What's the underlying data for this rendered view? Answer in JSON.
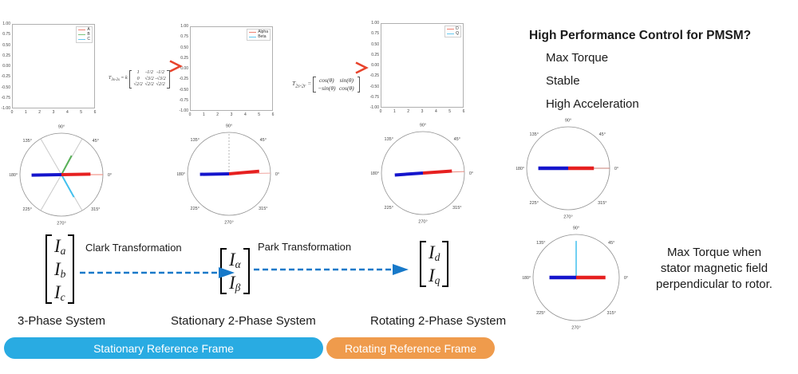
{
  "colors": {
    "pill_blue": "#29abe2",
    "pill_orange": "#ef9b4c",
    "bottom_arrow_blue": "#1779c9",
    "top_arrow_start": "#29abe2",
    "top_arrow_end": "#e8432c",
    "vector_red": "#e62020",
    "vector_blue": "#1515cc",
    "vector_green": "#58b158",
    "vector_cyan": "#41c0ee"
  },
  "chart_data": {
    "plots": [
      {
        "type": "line",
        "legend": [
          {
            "label": "A",
            "color": "#ef8173"
          },
          {
            "label": "B",
            "color": "#7cc47c"
          },
          {
            "label": "C",
            "color": "#64c8f0"
          }
        ],
        "y_ticks": [
          "1.00",
          "0.75",
          "0.50",
          "0.25",
          "0.00",
          "-0.25",
          "-0.50",
          "-0.75",
          "-1.00"
        ],
        "x_ticks": [
          "0",
          "1",
          "2",
          "3",
          "4",
          "5",
          "6"
        ],
        "ylim": [
          -1,
          1
        ],
        "xlim": [
          0,
          6
        ],
        "series": [
          {
            "name": "A",
            "values": []
          },
          {
            "name": "B",
            "values": []
          },
          {
            "name": "C",
            "values": []
          }
        ]
      },
      {
        "type": "line",
        "legend": [
          {
            "label": "Alpha",
            "color": "#ef8173"
          },
          {
            "label": "Beta",
            "color": "#64c8f0"
          }
        ],
        "y_ticks": [
          "1.00",
          "0.75",
          "0.50",
          "0.25",
          "0.00",
          "-0.25",
          "-0.50",
          "-0.75",
          "-1.00"
        ],
        "x_ticks": [
          "0",
          "1",
          "2",
          "3",
          "4",
          "5",
          "6"
        ],
        "ylim": [
          -1,
          1
        ],
        "xlim": [
          0,
          6
        ],
        "series": [
          {
            "name": "Alpha",
            "values": []
          },
          {
            "name": "Beta",
            "values": []
          }
        ]
      },
      {
        "type": "line",
        "legend": [
          {
            "label": "D",
            "color": "#ef8173"
          },
          {
            "label": "Q",
            "color": "#64c8f0"
          }
        ],
        "y_ticks": [
          "1.00",
          "0.75",
          "0.50",
          "0.25",
          "0.00",
          "-0.25",
          "-0.50",
          "-0.75",
          "-1.00"
        ],
        "x_ticks": [
          "0",
          "1",
          "2",
          "3",
          "4",
          "5",
          "6"
        ],
        "ylim": [
          -1,
          1
        ],
        "xlim": [
          0,
          6
        ],
        "series": [
          {
            "name": "D",
            "values": []
          },
          {
            "name": "Q",
            "values": []
          }
        ]
      }
    ],
    "polars": [
      {
        "name": "three-phase-vectors",
        "r": 52,
        "angle_labels": [
          "0°",
          "45°",
          "90°",
          "135°",
          "180°",
          "225°",
          "270°",
          "315°"
        ],
        "vectors": [
          {
            "a": 60,
            "len": 1,
            "w": 1,
            "color": "#c9c9c9",
            "diam": true
          },
          {
            "a": 120,
            "len": 1,
            "w": 1,
            "color": "#c9c9c9",
            "diam": true
          },
          {
            "a": 0,
            "len": 1,
            "w": 1,
            "color": "#ef8173"
          },
          {
            "a": 299,
            "len": 0.62,
            "w": 2,
            "color": "#41c0ee"
          },
          {
            "a": 62,
            "len": 0.52,
            "w": 2,
            "color": "#58b158"
          },
          {
            "a": 1,
            "len": 0.7,
            "w": 4,
            "color": "#e62020"
          },
          {
            "a": 181,
            "len": 0.72,
            "w": 4,
            "color": "#1515cc"
          }
        ]
      },
      {
        "name": "alpha-beta-vectors",
        "r": 52,
        "angle_labels": [
          "0°",
          "45°",
          "90°",
          "135°",
          "180°",
          "225°",
          "270°",
          "315°"
        ],
        "vectors": [
          {
            "a": 90,
            "len": 1,
            "w": 1,
            "color": "#b4b4b4",
            "dash": "2,2"
          },
          {
            "a": 1,
            "len": 1,
            "w": 1,
            "color": "#f0a6a0"
          },
          {
            "a": 5,
            "len": 0.73,
            "w": 4,
            "color": "#e62020"
          },
          {
            "a": 181,
            "len": 0.7,
            "w": 4,
            "color": "#1515cc"
          }
        ]
      },
      {
        "name": "dq-vectors",
        "r": 52,
        "angle_labels": [
          "0°",
          "45°",
          "90°",
          "135°",
          "180°",
          "225°",
          "270°",
          "315°"
        ],
        "vectors": [
          {
            "a": 2,
            "len": 1,
            "w": 1,
            "color": "#e88a80"
          },
          {
            "a": 4,
            "len": 0.7,
            "w": 4,
            "color": "#e62020"
          },
          {
            "a": 184,
            "len": 0.68,
            "w": 4,
            "color": "#1515cc"
          }
        ]
      },
      {
        "name": "aligned-field-vectors",
        "r": 52,
        "angle_labels": [
          "0°",
          "45°",
          "90°",
          "135°",
          "180°",
          "225°",
          "270°",
          "315°"
        ],
        "vectors": [
          {
            "a": 0,
            "len": 1,
            "w": 1,
            "color": "#c87c74"
          },
          {
            "a": 0,
            "len": 0.62,
            "w": 4.5,
            "color": "#e62020"
          },
          {
            "a": 180,
            "len": 0.72,
            "w": 4.5,
            "color": "#1515cc"
          }
        ]
      },
      {
        "name": "perpendicular-field-vectors",
        "r": 54,
        "angle_labels": [
          "0°",
          "45°",
          "90°",
          "135°",
          "180°",
          "225°",
          "270°",
          "315°"
        ],
        "vectors": [
          {
            "a": 90,
            "len": 0.85,
            "w": 1.5,
            "color": "#41c0ee"
          },
          {
            "a": 0,
            "len": 0.68,
            "w": 4.5,
            "color": "#e62020"
          },
          {
            "a": 180,
            "len": 0.62,
            "w": 4.5,
            "color": "#1515cc"
          }
        ]
      }
    ]
  },
  "formulas": [
    {
      "base": "T",
      "sub": "3s-2s",
      "eq": "= k",
      "rows": [
        [
          "1",
          "-1/2",
          "-1/2"
        ],
        [
          "0",
          "√3/2",
          "-√3/2"
        ],
        [
          "√2/2",
          "√2/2",
          "√2/2"
        ]
      ]
    },
    {
      "base": "T",
      "sub": "2s-2r",
      "eq": "=",
      "rows": [
        [
          "cos(θ)",
          "sin(θ)"
        ],
        [
          "−sin(θ)",
          "cos(θ)"
        ]
      ]
    }
  ],
  "bottom": {
    "matrices": [
      {
        "entries": [
          {
            "base": "I",
            "sub": "a"
          },
          {
            "base": "I",
            "sub": "b"
          },
          {
            "base": "I",
            "sub": "c"
          }
        ]
      },
      {
        "entries": [
          {
            "base": "I",
            "sub": "α"
          },
          {
            "base": "I",
            "sub": "β"
          }
        ]
      },
      {
        "entries": [
          {
            "base": "I",
            "sub": "d"
          },
          {
            "base": "I",
            "sub": "q"
          }
        ]
      }
    ],
    "arrow_labels": [
      "Clark Transformation",
      "Park Transformation"
    ],
    "section_labels": [
      "3-Phase System",
      "Stationary 2-Phase System",
      "Rotating 2-Phase System"
    ],
    "pills": [
      {
        "label": "Stationary Reference Frame",
        "color": "#29abe2"
      },
      {
        "label": "Rotating Reference Frame",
        "color": "#ef9b4c"
      }
    ]
  },
  "right_panel": {
    "title": "High Performance Control for PMSM?",
    "items": [
      "Max Torque",
      "Stable",
      "High Acceleration"
    ],
    "note_lines": [
      "Max Torque when",
      "stator magnetic field",
      "perpendicular to rotor."
    ]
  }
}
